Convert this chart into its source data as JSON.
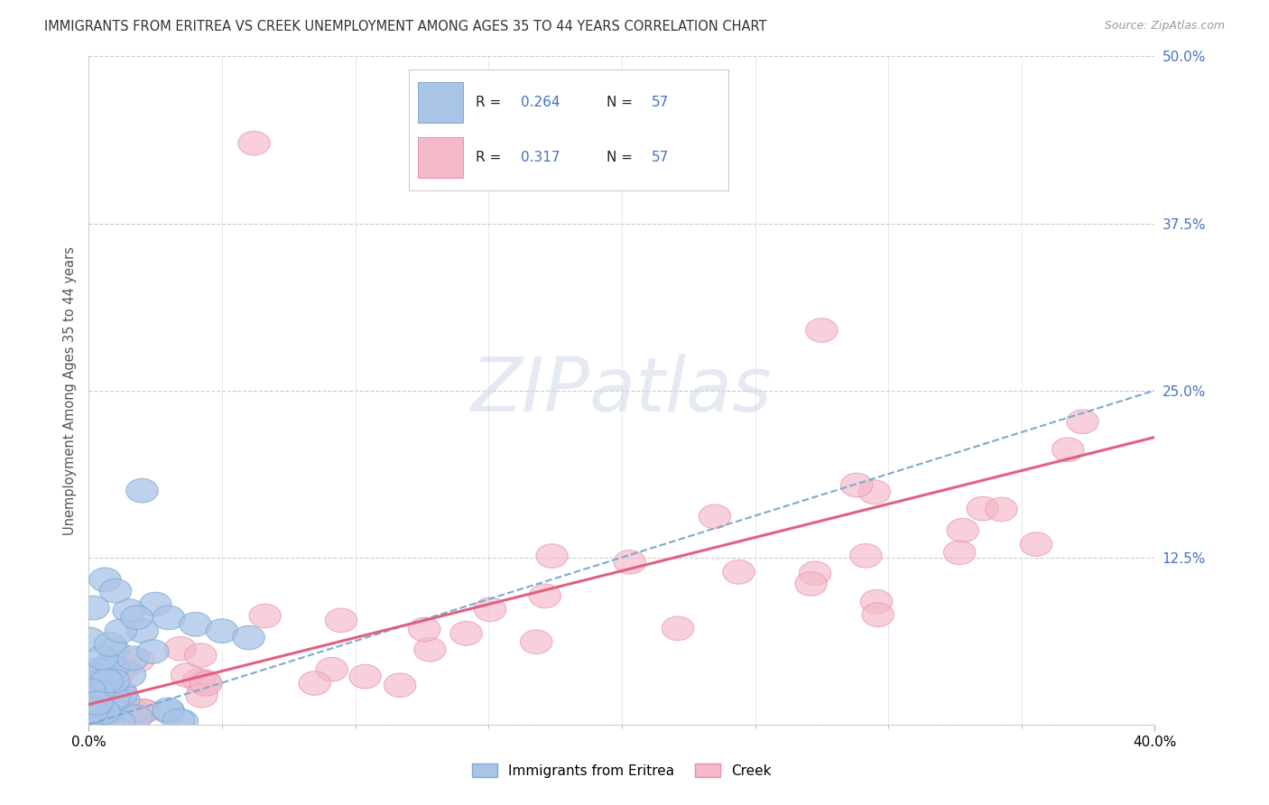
{
  "title": "IMMIGRANTS FROM ERITREA VS CREEK UNEMPLOYMENT AMONG AGES 35 TO 44 YEARS CORRELATION CHART",
  "source": "Source: ZipAtlas.com",
  "ylabel_label": "Unemployment Among Ages 35 to 44 years",
  "legend_top": [
    {
      "R": "0.264",
      "N": "57",
      "color": "#aac4e8",
      "edgecolor": "#7aaad4"
    },
    {
      "R": "0.317",
      "N": "57",
      "color": "#f4b8c8",
      "edgecolor": "#e890a8"
    }
  ],
  "legend_bottom": [
    {
      "label": "Immigrants from Eritrea",
      "color": "#aac4e8",
      "edgecolor": "#7aaad4"
    },
    {
      "label": "Creek",
      "color": "#f4b8c8",
      "edgecolor": "#e890a8"
    }
  ],
  "blue_trend": [
    0.0,
    0.0,
    0.4,
    0.25
  ],
  "pink_trend": [
    0.0,
    0.015,
    0.4,
    0.215
  ],
  "xlim": [
    0.0,
    0.4
  ],
  "ylim": [
    0.0,
    0.5
  ],
  "yticks": [
    0.0,
    0.125,
    0.25,
    0.375,
    0.5
  ],
  "ytick_labels": [
    "",
    "12.5%",
    "25.0%",
    "37.5%",
    "50.0%"
  ],
  "xtick_left": "0.0%",
  "xtick_right": "40.0%",
  "background_color": "#ffffff",
  "grid_color": "#cccccc",
  "blue_scatter_seed": 42,
  "pink_scatter_seed": 99
}
